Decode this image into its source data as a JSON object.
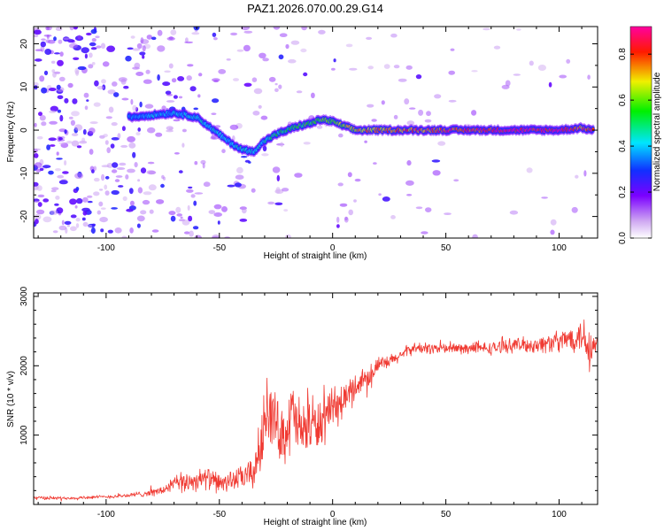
{
  "figure": {
    "title": "PAZ1.2026.070.00.29.G14"
  },
  "chart_data": [
    {
      "type": "heatmap",
      "title": "PAZ1.2026.070.00.29.G14",
      "xlabel": "Height of straight line (km)",
      "ylabel": "Frequency (Hz)",
      "xlim": [
        -132,
        117
      ],
      "ylim": [
        -25,
        24
      ],
      "xticks": [
        -100,
        -50,
        0,
        50,
        100
      ],
      "yticks": [
        -20,
        -10,
        0,
        10,
        20
      ],
      "colorbar": {
        "label": "Normalized spectral amplitude",
        "range": [
          0.0,
          0.92
        ],
        "ticks": [
          0.0,
          0.2,
          0.4,
          0.6,
          0.8
        ],
        "colormap": "white-purple-blue-cyan-green-yellow-red-magenta"
      },
      "ridge": {
        "description": "frequency of peak amplitude vs height",
        "height_km": [
          -90,
          -80,
          -70,
          -60,
          -55,
          -50,
          -45,
          -40,
          -35,
          -30,
          -25,
          -20,
          -15,
          -10,
          -5,
          0,
          5,
          10,
          20,
          40,
          60,
          80,
          100,
          110,
          115
        ],
        "frequency_hz": [
          3,
          3.5,
          4,
          3,
          1,
          -1,
          -3,
          -4.5,
          -5,
          -2.5,
          -1,
          0,
          1,
          1.5,
          2.5,
          2,
          1,
          0,
          0,
          0,
          0,
          0,
          0,
          0.5,
          0
        ],
        "amplitude": [
          0.35,
          0.4,
          0.4,
          0.45,
          0.4,
          0.45,
          0.4,
          0.45,
          0.45,
          0.45,
          0.5,
          0.5,
          0.55,
          0.55,
          0.6,
          0.6,
          0.65,
          0.7,
          0.75,
          0.8,
          0.85,
          0.9,
          0.9,
          0.8,
          0.85
        ]
      },
      "noise": {
        "description": "scattered low-amplitude background, strongest at negative heights",
        "height_km": [
          -125,
          -100,
          -75,
          -50,
          -25,
          0,
          25,
          50,
          75,
          100
        ],
        "density": [
          1.0,
          0.85,
          0.6,
          0.4,
          0.3,
          0.22,
          0.15,
          0.1,
          0.08,
          0.05
        ]
      }
    },
    {
      "type": "line",
      "xlabel": "Height of straight line (km)",
      "ylabel": "SNR (10 * v/v)",
      "xlim": [
        -132,
        117
      ],
      "ylim": [
        0,
        3050
      ],
      "xticks": [
        -100,
        -50,
        0,
        50,
        100
      ],
      "yticks": [
        1000,
        2000,
        3000
      ],
      "color": "#f03a32",
      "series": [
        {
          "name": "SNR",
          "x": [
            -132,
            -120,
            -110,
            -100,
            -90,
            -85,
            -80,
            -75,
            -70,
            -65,
            -60,
            -55,
            -50,
            -45,
            -40,
            -35,
            -32,
            -30,
            -28,
            -25,
            -22,
            -20,
            -18,
            -15,
            -12,
            -10,
            -8,
            -5,
            -2,
            0,
            5,
            10,
            15,
            20,
            25,
            30,
            35,
            40,
            50,
            60,
            70,
            80,
            90,
            100,
            105,
            110,
            113,
            115,
            117
          ],
          "y": [
            100,
            90,
            100,
            110,
            130,
            150,
            170,
            200,
            300,
            320,
            350,
            380,
            300,
            350,
            380,
            450,
            800,
            1200,
            1400,
            1150,
            1000,
            1100,
            1300,
            1100,
            1050,
            1250,
            1100,
            1200,
            1250,
            1350,
            1500,
            1700,
            1850,
            2000,
            2050,
            2150,
            2250,
            2250,
            2250,
            2250,
            2250,
            2300,
            2300,
            2350,
            2400,
            2450,
            2350,
            2250,
            2300
          ],
          "fluctuation": [
            30,
            30,
            30,
            30,
            40,
            50,
            60,
            80,
            150,
            170,
            180,
            180,
            170,
            180,
            200,
            300,
            500,
            600,
            600,
            500,
            500,
            550,
            650,
            550,
            500,
            600,
            500,
            450,
            400,
            350,
            300,
            250,
            200,
            150,
            120,
            110,
            100,
            100,
            100,
            100,
            110,
            120,
            150,
            180,
            220,
            300,
            500,
            350,
            200
          ]
        }
      ]
    }
  ]
}
